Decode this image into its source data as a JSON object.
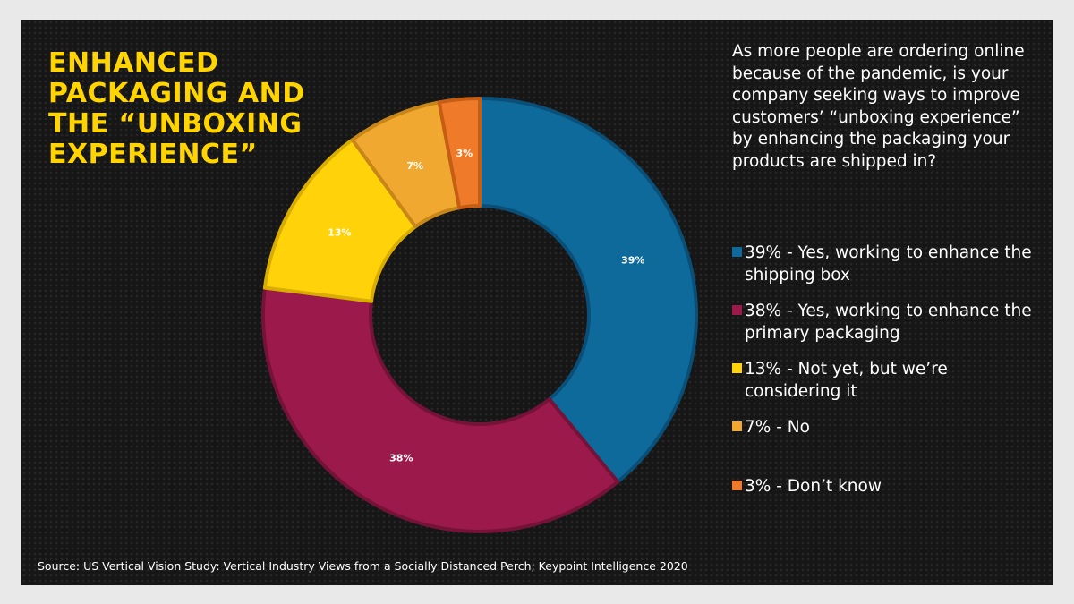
{
  "title_lines": [
    "ENHANCED",
    "PACKAGING AND",
    "THE “UNBOXING",
    "EXPERIENCE”"
  ],
  "question": "As more people are ordering online because of the pandemic, is your company seeking ways to improve customers’ “unboxing experience” by enhancing the packaging your products are shipped in?",
  "source": "Source: US Vertical Vision Study: Vertical Industry Views from a Socially Distanced Perch; Keypoint Intelligence 2020",
  "colors": {
    "background": "#161616",
    "title": "#ffd400",
    "text": "#ffffff"
  },
  "chart_data": {
    "type": "pie",
    "donut": true,
    "legend_position": "right",
    "slices": [
      {
        "value": 39,
        "label": "39%",
        "legend": "39% - Yes, working to enhance the shipping box",
        "color": "#0f6a9c",
        "edge": "#0a4f78"
      },
      {
        "value": 38,
        "label": "38%",
        "legend": "38% - Yes, working to enhance the primary packaging",
        "color": "#9c1a4b",
        "edge": "#751238"
      },
      {
        "value": 13,
        "label": "13%",
        "legend": "13% - Not yet, but we’re considering it",
        "color": "#ffd20a",
        "edge": "#d9ad00"
      },
      {
        "value": 7,
        "label": "7%",
        "legend": "7% - No",
        "color": "#f0a830",
        "edge": "#c88618"
      },
      {
        "value": 3,
        "label": "3%",
        "legend": "3% - Don’t know",
        "color": "#ef7a2a",
        "edge": "#c65d14"
      }
    ]
  }
}
